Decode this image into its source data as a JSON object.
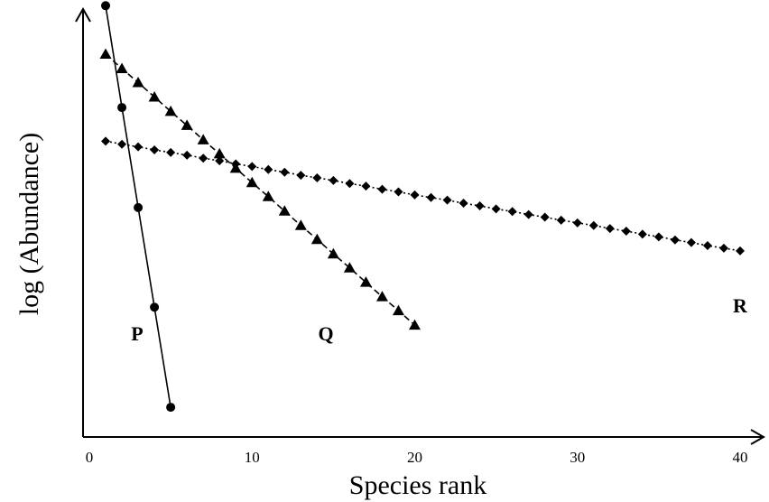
{
  "chart_data": {
    "type": "line",
    "xlabel": "Species rank",
    "ylabel": "log (Abundance)",
    "xlim": [
      0,
      40
    ],
    "ylim": [
      0,
      1
    ],
    "x_ticks": [
      "0",
      "10",
      "20",
      "30",
      "40"
    ],
    "y_ticks": [],
    "grid": false,
    "legend": "none",
    "series": [
      {
        "name": "P",
        "marker": "circle",
        "line": "solid",
        "x": [
          1,
          2,
          3,
          4,
          5
        ],
        "y": [
          0.987,
          0.754,
          0.525,
          0.297,
          0.068
        ]
      },
      {
        "name": "Q",
        "marker": "triangle",
        "line": "dashed",
        "x": [
          1,
          2,
          3,
          4,
          5,
          6,
          7,
          8,
          9,
          10,
          11,
          12,
          13,
          14,
          15,
          16,
          17,
          18,
          19,
          20
        ],
        "y": [
          0.876,
          0.843,
          0.811,
          0.778,
          0.745,
          0.713,
          0.68,
          0.648,
          0.615,
          0.582,
          0.55,
          0.517,
          0.484,
          0.452,
          0.419,
          0.387,
          0.354,
          0.321,
          0.289,
          0.256
        ]
      },
      {
        "name": "R",
        "marker": "diamond",
        "line": "dotted",
        "x": [
          1,
          2,
          3,
          4,
          5,
          6,
          7,
          8,
          9,
          10,
          11,
          12,
          13,
          14,
          15,
          16,
          17,
          18,
          19,
          20,
          21,
          22,
          23,
          24,
          25,
          26,
          27,
          28,
          29,
          30,
          31,
          32,
          33,
          34,
          35,
          36,
          37,
          38,
          39,
          40
        ],
        "y": [
          0.677,
          0.67,
          0.664,
          0.657,
          0.651,
          0.645,
          0.638,
          0.632,
          0.625,
          0.619,
          0.612,
          0.606,
          0.599,
          0.593,
          0.587,
          0.58,
          0.574,
          0.567,
          0.561,
          0.554,
          0.548,
          0.542,
          0.535,
          0.529,
          0.522,
          0.516,
          0.509,
          0.503,
          0.496,
          0.49,
          0.484,
          0.477,
          0.471,
          0.464,
          0.458,
          0.451,
          0.445,
          0.438,
          0.432,
          0.426
        ]
      }
    ]
  }
}
